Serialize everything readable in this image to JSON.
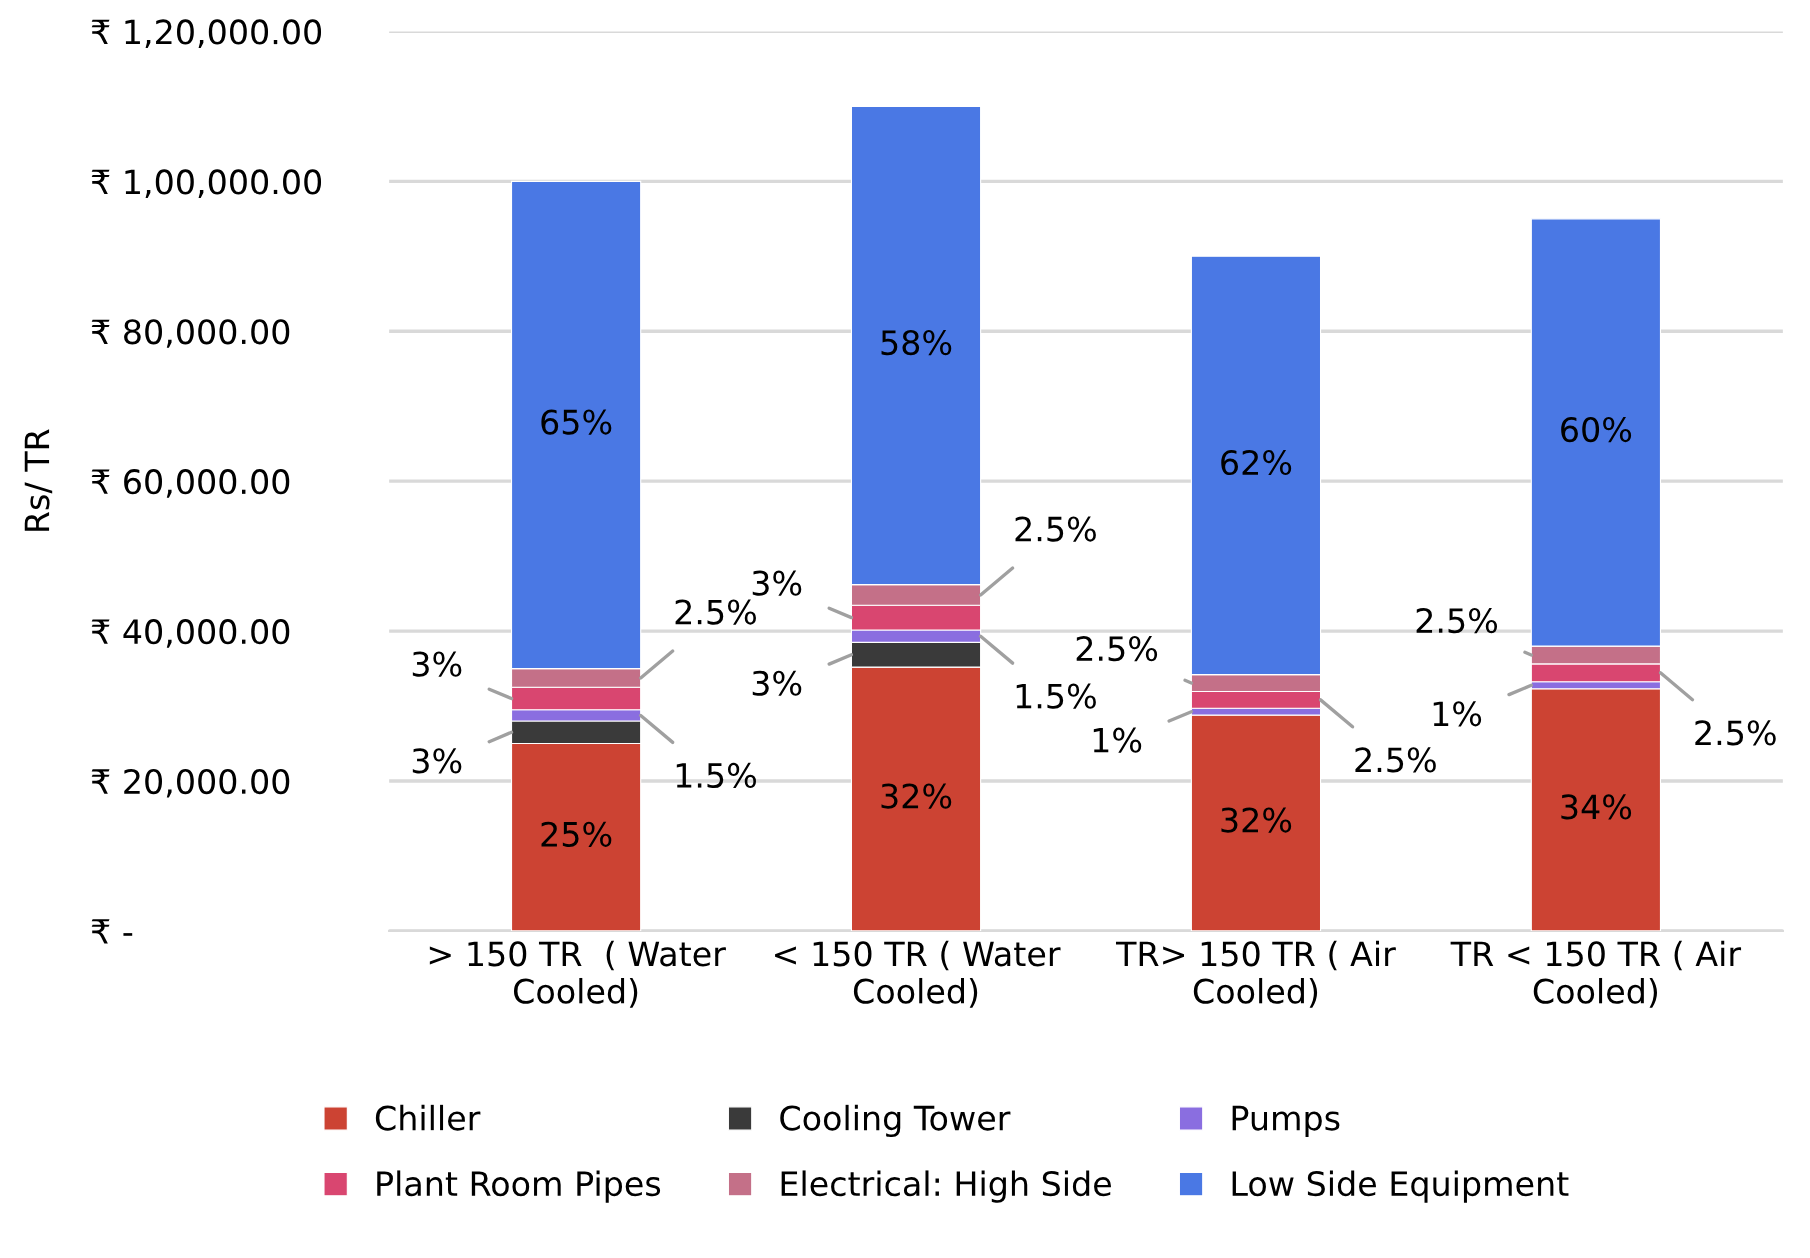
{
  "chart_data": {
    "type": "bar",
    "stacked": true,
    "ylabel": "Rs/ TR",
    "categories": [
      "> 150 TR  ( Water Cooled)",
      "< 150 TR ( Water Cooled)",
      "TR> 150 TR ( Air Cooled)",
      "TR < 150 TR ( Air Cooled)"
    ],
    "series": [
      {
        "name": "Chiller",
        "color": "#cc4333",
        "values": [
          25000,
          35200,
          28800,
          32300
        ]
      },
      {
        "name": "Cooling Tower",
        "color": "#3a3a3a",
        "values": [
          3000,
          3300,
          null,
          null
        ]
      },
      {
        "name": "Pumps",
        "color": "#8a6ee0",
        "values": [
          1500,
          1650,
          900,
          950
        ]
      },
      {
        "name": "Plant Room Pipes",
        "color": "#d94670",
        "values": [
          3000,
          3300,
          2250,
          2375
        ]
      },
      {
        "name": "Electrical: High Side",
        "color": "#c47088",
        "values": [
          2500,
          2750,
          2250,
          2375
        ]
      },
      {
        "name": "Low Side Equipment",
        "color": "#4a78e4",
        "values": [
          65000,
          63800,
          55800,
          57000
        ]
      }
    ],
    "annotations": [
      "25%",
      "3%",
      "1.5%",
      "3%",
      "2.5%",
      "65%",
      "32%",
      "3%",
      "1.5%",
      "3%",
      "2.5%",
      "58%",
      "32%",
      "1%",
      "2.5%",
      "2.5%",
      "62%",
      "34%",
      "1%",
      "2.5%",
      "2.5%",
      "60%"
    ],
    "ylim": [
      0,
      120000
    ],
    "yticks": [
      {
        "value": 0,
        "label": "₹ -"
      },
      {
        "value": 20000,
        "label": "₹ 20,000.00"
      },
      {
        "value": 40000,
        "label": "₹ 40,000.00"
      },
      {
        "value": 60000,
        "label": "₹ 60,000.00"
      },
      {
        "value": 80000,
        "label": "₹ 80,000.00"
      },
      {
        "value": 100000,
        "label": "₹ 1,00,000.00"
      },
      {
        "value": 120000,
        "label": "₹ 1,20,000.00"
      }
    ],
    "grid": "y",
    "legend": "bottom"
  }
}
